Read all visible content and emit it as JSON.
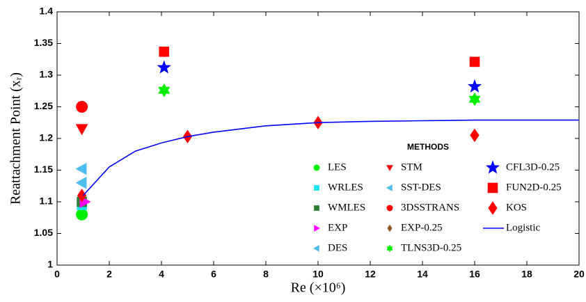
{
  "chart_data": {
    "type": "scatter",
    "xlabel": "Re (×10⁶)",
    "ylabel": "Reattachment Point (xᵣ)",
    "legend_title": "METHODS",
    "xlim": [
      0,
      20
    ],
    "xticks": [
      0,
      2,
      4,
      6,
      8,
      10,
      12,
      14,
      16,
      18,
      20
    ],
    "ylim": [
      1,
      1.4
    ],
    "yticks": [
      1,
      1.05,
      1.1,
      1.15,
      1.2,
      1.25,
      1.3,
      1.35,
      1.4
    ],
    "grid": false,
    "series": [
      {
        "name": "LES",
        "color": "#00ee00",
        "marker": "circle",
        "x": [
          0.95
        ],
        "values": [
          1.08
        ]
      },
      {
        "name": "WRLES",
        "color": "#1ee3f0",
        "marker": "square",
        "x": [
          0.95
        ],
        "values": [
          1.095
        ]
      },
      {
        "name": "WMLES",
        "color": "#2e7d32",
        "marker": "square",
        "x": [
          0.95
        ],
        "values": [
          1.1
        ]
      },
      {
        "name": "EXP",
        "color": "#ff00ff",
        "marker": "triangle-right",
        "x": [
          1.05
        ],
        "values": [
          1.1
        ]
      },
      {
        "name": "DES",
        "color": "#4dbeee",
        "marker": "triangle-left",
        "x": [
          0.95
        ],
        "values": [
          1.13
        ]
      },
      {
        "name": "STM",
        "color": "#ff0000",
        "marker": "triangle-down",
        "x": [
          0.95
        ],
        "values": [
          1.215
        ]
      },
      {
        "name": "SST-DES",
        "color": "#4dbeee",
        "marker": "triangle-left",
        "x": [
          0.95
        ],
        "values": [
          1.152
        ]
      },
      {
        "name": "3DSSTRANS",
        "color": "#ff0000",
        "marker": "circle",
        "x": [
          0.95
        ],
        "values": [
          1.25
        ]
      },
      {
        "name": "EXP-0.25",
        "color": "#a0522d",
        "marker": "diamond",
        "x": [
          16
        ],
        "values": [
          1.205
        ]
      },
      {
        "name": "TLNS3D-0.25",
        "color": "#00ee00",
        "marker": "hexagram",
        "x": [
          4.1,
          16
        ],
        "values": [
          1.276,
          1.262
        ]
      },
      {
        "name": "CFL3D-0.25",
        "color": "#0000ff",
        "marker": "star",
        "x": [
          4.1,
          16
        ],
        "values": [
          1.312,
          1.282
        ]
      },
      {
        "name": "FUN2D-0.25",
        "color": "#ff0000",
        "marker": "square",
        "x": [
          4.1,
          16
        ],
        "values": [
          1.337,
          1.321
        ]
      },
      {
        "name": "KOS",
        "color": "#ff0000",
        "marker": "diamond",
        "x": [
          0.95,
          5,
          10,
          16
        ],
        "values": [
          1.11,
          1.203,
          1.225,
          1.205
        ]
      },
      {
        "name": "Logistic",
        "color": "#0000ff",
        "marker": "line",
        "x": [
          1,
          2,
          3,
          4,
          5,
          6,
          8,
          10,
          12,
          14,
          16,
          18,
          20
        ],
        "values": [
          1.11,
          1.155,
          1.18,
          1.193,
          1.203,
          1.21,
          1.22,
          1.225,
          1.227,
          1.228,
          1.229,
          1.229,
          1.229
        ]
      }
    ]
  }
}
